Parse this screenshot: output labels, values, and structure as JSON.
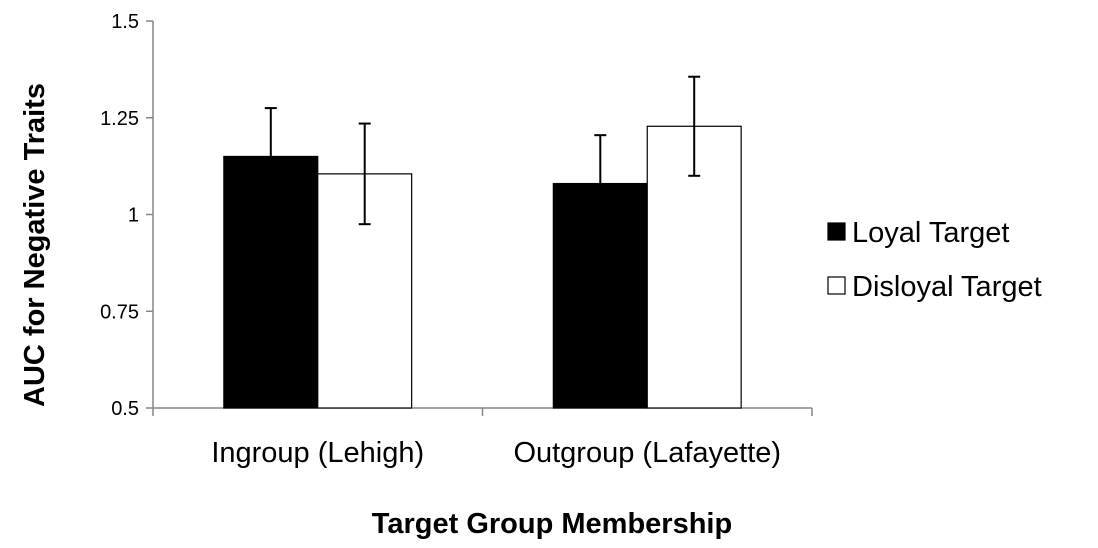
{
  "chart_data": {
    "type": "bar",
    "categories": [
      "Ingroup (Lehigh)",
      "Outgroup (Lafayette)"
    ],
    "series": [
      {
        "name": "Loyal Target",
        "color": "#000000",
        "values": [
          1.15,
          1.08
        ],
        "error": [
          0.125,
          0.125
        ]
      },
      {
        "name": "Disloyal Target",
        "color": "#ffffff",
        "values": [
          1.105,
          1.228
        ],
        "error": [
          0.13,
          0.128
        ]
      }
    ],
    "title": "",
    "xlabel": "Target Group Membership",
    "ylabel": "AUC for Negative Traits",
    "ylim": [
      0.5,
      1.5
    ],
    "yticks": [
      0.5,
      0.75,
      1,
      1.25,
      1.5
    ],
    "ytick_labels": [
      "0.5",
      "0.75",
      "1",
      "1.25",
      "1.5"
    ],
    "grid": false,
    "legend_position": "right"
  }
}
